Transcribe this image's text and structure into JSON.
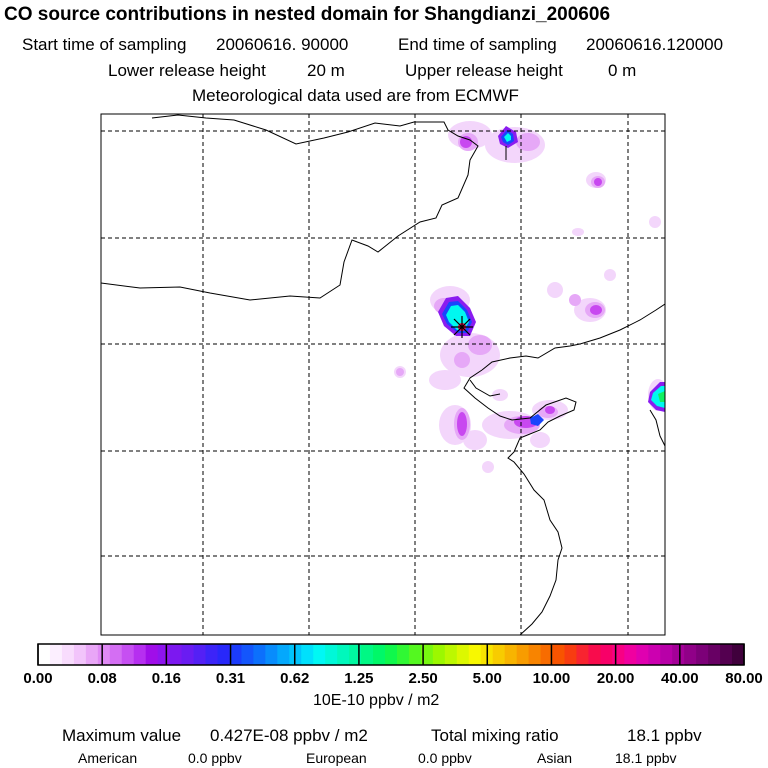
{
  "header": {
    "title": "CO  source contributions in nested domain for Shangdianzi_200606",
    "start_label": "Start time of sampling",
    "start_value": "20060616. 90000",
    "end_label": "End time of sampling",
    "end_value": "20060616.120000",
    "lower_label": "Lower release height",
    "lower_value": "20 m",
    "upper_label": "Upper release height",
    "upper_value": "0 m",
    "met_note": "Meteorological data used are from ECMWF"
  },
  "colorbar": {
    "labels": [
      "0.00",
      "0.08",
      "0.16",
      "0.31",
      "0.62",
      "1.25",
      "2.50",
      "5.00",
      "10.00",
      "20.00",
      "40.00",
      "80.00"
    ],
    "units": "10E-10 ppbv / m2",
    "colors": [
      "#ffffff",
      "#fcefff",
      "#f8dcfd",
      "#f2c4fb",
      "#e9a6f7",
      "#e08af5",
      "#d46ef3",
      "#c64ff2",
      "#b62ff0",
      "#a00ee9",
      "#8e14ef",
      "#7c18f0",
      "#6a1cf2",
      "#5420f5",
      "#3c24f8",
      "#2828fa",
      "#1c3cfc",
      "#1456fc",
      "#0c70fc",
      "#088cfc",
      "#04a8fc",
      "#00c4fc",
      "#00e0fc",
      "#00f8f4",
      "#00f8d8",
      "#00f8bc",
      "#00f8a0",
      "#00f884",
      "#00f868",
      "#10f84c",
      "#30f834",
      "#54f820",
      "#78f810",
      "#9cf800",
      "#bcf800",
      "#dcf800",
      "#f8f800",
      "#f8e400",
      "#f8cc00",
      "#f8b400",
      "#f89c00",
      "#f88400",
      "#f86c00",
      "#f85400",
      "#f83c10",
      "#f82430",
      "#f80c4c",
      "#f80068",
      "#f80084",
      "#f000a0",
      "#e000b0",
      "#cc00b0",
      "#b800a8",
      "#a40098",
      "#900088",
      "#7c0078",
      "#680064",
      "#540050",
      "#40003c"
    ]
  },
  "stats": {
    "max_label": "Maximum value",
    "max_value": "0.427E-08 ppbv / m2",
    "total_label": "Total mixing ratio",
    "total_value": "18.1 ppbv",
    "regions": [
      {
        "name": "American",
        "value": "0.0 ppbv"
      },
      {
        "name": "European",
        "value": "0.0 ppbv"
      },
      {
        "name": "Asian",
        "value": "18.1 ppbv"
      }
    ]
  },
  "map": {
    "receptor_marker": "star-icon",
    "plume_colors": {
      "light": "#f3d6fb",
      "pink": "#e6a8f7",
      "magenta": "#c848f0",
      "purple": "#8a1cf0",
      "blue": "#1a44fc",
      "cyan": "#00f8f0",
      "green": "#10f060"
    }
  }
}
